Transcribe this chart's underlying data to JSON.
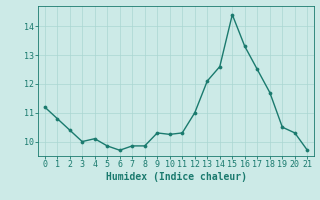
{
  "x": [
    0,
    1,
    2,
    3,
    4,
    5,
    6,
    7,
    8,
    9,
    10,
    11,
    12,
    13,
    14,
    15,
    16,
    17,
    18,
    19,
    20,
    21
  ],
  "y": [
    11.2,
    10.8,
    10.4,
    10.0,
    10.1,
    9.85,
    9.7,
    9.85,
    9.85,
    10.3,
    10.25,
    10.3,
    11.0,
    12.1,
    12.6,
    14.4,
    13.3,
    12.5,
    11.7,
    10.5,
    10.3,
    9.7
  ],
  "line_color": "#1a7a6e",
  "marker_color": "#1a7a6e",
  "bg_color": "#cceae7",
  "grid_color": "#aad6d2",
  "xlabel": "Humidex (Indice chaleur)",
  "xlim": [
    -0.5,
    21.5
  ],
  "ylim": [
    9.5,
    14.7
  ],
  "yticks": [
    10,
    11,
    12,
    13,
    14
  ],
  "xticks": [
    0,
    1,
    2,
    3,
    4,
    5,
    6,
    7,
    8,
    9,
    10,
    11,
    12,
    13,
    14,
    15,
    16,
    17,
    18,
    19,
    20,
    21
  ],
  "xlabel_fontsize": 7,
  "tick_fontsize": 6,
  "linewidth": 1.0,
  "markersize": 2.2,
  "spine_color": "#1a7a6e"
}
